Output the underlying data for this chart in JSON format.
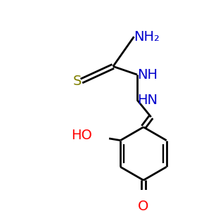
{
  "background_color": "#ffffff",
  "bond_color": "#000000",
  "S_color": "#808000",
  "N_color": "#0000cc",
  "O_color": "#ff0000",
  "label_NH2": "NH₂",
  "label_S": "S",
  "label_NH": "NH",
  "label_HN": "HN",
  "label_HO": "HO",
  "label_O": "O",
  "figsize": [
    3.0,
    3.0
  ],
  "dpi": 100
}
